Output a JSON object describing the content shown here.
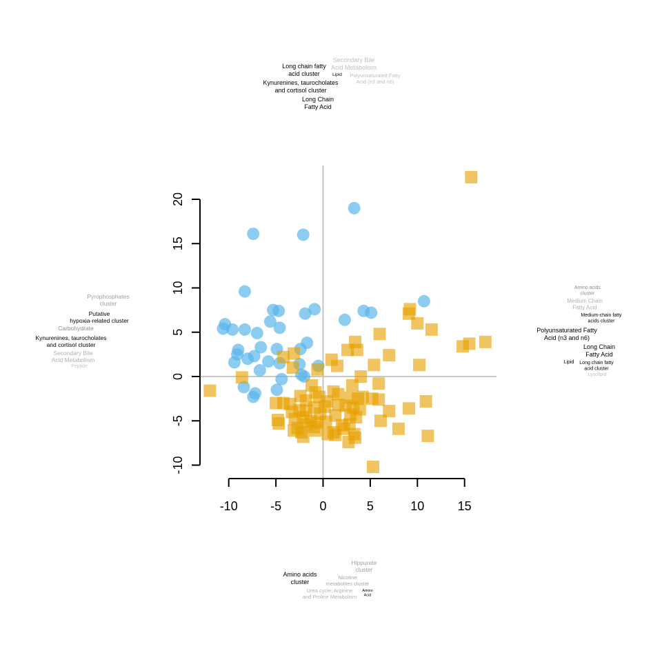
{
  "chart_data": {
    "type": "scatter",
    "title": "",
    "xlabel": "",
    "ylabel": "",
    "xlim": [
      -12.5,
      18.5
    ],
    "ylim": [
      -11,
      24
    ],
    "x_ticks": [
      -10,
      -5,
      0,
      5,
      10,
      15
    ],
    "y_ticks": [
      -10,
      -5,
      0,
      5,
      10,
      15,
      20
    ],
    "x_tick_labels": [
      "-10",
      "-5",
      "0",
      "5",
      "10",
      "15"
    ],
    "y_tick_labels": [
      "-10",
      "-5",
      "0",
      "5",
      "10",
      "15",
      "20"
    ],
    "reference_lines": {
      "x": 0,
      "y": 0,
      "color": "#bfbfbf"
    },
    "grid": false,
    "series": [
      {
        "marker": "circle",
        "color": "#56B4E9",
        "points": [
          [
            3.3,
            19.0
          ],
          [
            -7.4,
            16.1
          ],
          [
            -2.1,
            16.0
          ],
          [
            -8.3,
            9.6
          ],
          [
            10.7,
            8.5
          ],
          [
            -0.9,
            7.6
          ],
          [
            -5.3,
            7.5
          ],
          [
            -4.7,
            7.4
          ],
          [
            4.3,
            7.4
          ],
          [
            -1.9,
            7.1
          ],
          [
            5.1,
            7.2
          ],
          [
            2.3,
            6.4
          ],
          [
            -10.4,
            5.9
          ],
          [
            -5.6,
            6.2
          ],
          [
            -10.6,
            5.4
          ],
          [
            -9.6,
            5.3
          ],
          [
            -8.3,
            5.3
          ],
          [
            -4.6,
            5.5
          ],
          [
            -7.0,
            4.9
          ],
          [
            -1.7,
            3.8
          ],
          [
            -6.6,
            3.3
          ],
          [
            -9.0,
            3.0
          ],
          [
            -4.9,
            3.1
          ],
          [
            -2.4,
            3.1
          ],
          [
            -9.1,
            2.5
          ],
          [
            -7.3,
            2.3
          ],
          [
            -8.0,
            2.0
          ],
          [
            -5.8,
            1.7
          ],
          [
            -9.4,
            1.6
          ],
          [
            -2.5,
            1.4
          ],
          [
            -0.5,
            1.2
          ],
          [
            -4.6,
            1.5
          ],
          [
            -6.7,
            0.7
          ],
          [
            -2.3,
            0.2
          ],
          [
            -2.0,
            0.0
          ],
          [
            -4.4,
            -0.3
          ],
          [
            -8.4,
            -1.2
          ],
          [
            -4.9,
            -1.5
          ],
          [
            -7.2,
            -1.9
          ],
          [
            -7.4,
            -2.3
          ]
        ]
      },
      {
        "marker": "square",
        "color": "#E69F00",
        "points": [
          [
            15.7,
            22.5
          ],
          [
            9.2,
            7.6
          ],
          [
            9.1,
            7.1
          ],
          [
            10.0,
            6.0
          ],
          [
            11.5,
            5.3
          ],
          [
            6.0,
            4.8
          ],
          [
            3.4,
            3.9
          ],
          [
            17.2,
            3.9
          ],
          [
            15.5,
            3.7
          ],
          [
            14.8,
            3.4
          ],
          [
            2.6,
            3.0
          ],
          [
            3.6,
            3.0
          ],
          [
            7.0,
            2.4
          ],
          [
            -4.2,
            2.2
          ],
          [
            -3.1,
            2.6
          ],
          [
            0.9,
            1.9
          ],
          [
            5.4,
            1.3
          ],
          [
            10.2,
            1.3
          ],
          [
            1.5,
            1.2
          ],
          [
            -3.2,
            1.0
          ],
          [
            -0.6,
            0.8
          ],
          [
            4.0,
            0.0
          ],
          [
            -8.6,
            -0.1
          ],
          [
            5.9,
            -0.8
          ],
          [
            3.1,
            -1.0
          ],
          [
            -1.2,
            -1.0
          ],
          [
            -12.0,
            -1.6
          ],
          [
            1.1,
            -1.7
          ],
          [
            -0.8,
            -1.8
          ],
          [
            1.6,
            -2.0
          ],
          [
            -2.4,
            -2.2
          ],
          [
            -0.4,
            -2.3
          ],
          [
            2.9,
            -2.4
          ],
          [
            3.7,
            -2.5
          ],
          [
            4.2,
            -2.3
          ],
          [
            5.2,
            -2.5
          ],
          [
            5.9,
            -2.6
          ],
          [
            -1.8,
            -2.7
          ],
          [
            0.4,
            -2.8
          ],
          [
            10.9,
            -2.8
          ],
          [
            -3.5,
            -3.1
          ],
          [
            -4.2,
            -3.0
          ],
          [
            -5.0,
            -3.0
          ],
          [
            2.4,
            -3.3
          ],
          [
            1.6,
            -3.2
          ],
          [
            -0.9,
            -3.5
          ],
          [
            0.2,
            -3.4
          ],
          [
            3.2,
            -3.5
          ],
          [
            9.1,
            -3.6
          ],
          [
            -1.8,
            -3.9
          ],
          [
            -2.5,
            -3.8
          ],
          [
            3.9,
            -3.7
          ],
          [
            -3.3,
            -4.0
          ],
          [
            7.0,
            -3.9
          ],
          [
            -0.3,
            -4.2
          ],
          [
            1.3,
            -4.4
          ],
          [
            2.9,
            -4.3
          ],
          [
            3.5,
            -4.6
          ],
          [
            -2.1,
            -4.6
          ],
          [
            -3.0,
            -4.8
          ],
          [
            -4.8,
            -4.9
          ],
          [
            -1.3,
            -5.0
          ],
          [
            0.3,
            -5.1
          ],
          [
            6.1,
            -5.0
          ],
          [
            -4.7,
            -5.3
          ],
          [
            -0.6,
            -5.2
          ],
          [
            -1.8,
            -5.4
          ],
          [
            2.0,
            -5.5
          ],
          [
            2.8,
            -5.4
          ],
          [
            -2.7,
            -5.8
          ],
          [
            -1.0,
            -5.7
          ],
          [
            2.2,
            -5.9
          ],
          [
            8.0,
            -5.9
          ],
          [
            -3.1,
            -6.1
          ],
          [
            -0.8,
            -6.1
          ],
          [
            1.1,
            -6.3
          ],
          [
            -2.3,
            -6.3
          ],
          [
            0.5,
            -6.5
          ],
          [
            3.3,
            -6.5
          ],
          [
            -2.1,
            -6.8
          ],
          [
            1.3,
            -6.6
          ],
          [
            11.1,
            -6.7
          ],
          [
            3.4,
            -6.9
          ],
          [
            2.7,
            -7.4
          ],
          [
            5.3,
            -10.2
          ]
        ]
      }
    ],
    "annotations": {
      "top": [
        {
          "lines": [
            "Secondary Bile",
            "Acid Metabolism"
          ],
          "color": "#c0c0c0",
          "size": 9
        },
        {
          "lines": [
            "Long chain fatty",
            "acid cluster"
          ],
          "color": "#000000",
          "size": 9
        },
        {
          "lines": [
            "Lipid"
          ],
          "color": "#000000",
          "size": 6.5
        },
        {
          "lines": [
            "Polyunsaturated Fatty",
            "Acid (n3 and n6)"
          ],
          "color": "#c0c0c0",
          "size": 7.5
        },
        {
          "lines": [
            "Kynurenines, taurocholates",
            "and cortisol cluster"
          ],
          "color": "#000000",
          "size": 9
        },
        {
          "lines": [
            "Long Chain",
            "Fatty Acid"
          ],
          "color": "#000000",
          "size": 9
        }
      ],
      "left": [
        {
          "lines": [
            "Pyrophosphates",
            "cluster"
          ],
          "color": "#a0a0a0",
          "size": 8.5
        },
        {
          "lines": [
            "Putative",
            "hypoxia-related cluster"
          ],
          "color": "#000000",
          "size": 8.5
        },
        {
          "lines": [
            "Carbohydrate"
          ],
          "color": "#8a8a8a",
          "size": 8.5
        },
        {
          "lines": [
            "Kynurenines, taurocholates",
            "and cortisol cluster"
          ],
          "color": "#000000",
          "size": 8.5
        },
        {
          "lines": [
            "Secondary Bile",
            "Acid Metabolism"
          ],
          "color": "#b0b0b0",
          "size": 8.5
        },
        {
          "lines": [
            "Peptide"
          ],
          "color": "#c8c8c8",
          "size": 7
        }
      ],
      "right": [
        {
          "lines": [
            "Amino acids",
            "cluster"
          ],
          "color": "#8a8a8a",
          "size": 7
        },
        {
          "lines": [
            "Medium Chain",
            "Fatty Acid"
          ],
          "color": "#b0b0b0",
          "size": 8
        },
        {
          "lines": [
            "Medium-chain fatty",
            "acids cluster"
          ],
          "color": "#000000",
          "size": 7
        },
        {
          "lines": [
            "Polyunsaturated Fatty",
            "Acid (n3 and n6)"
          ],
          "color": "#000000",
          "size": 9
        },
        {
          "lines": [
            "Long Chain",
            "Fatty Acid"
          ],
          "color": "#000000",
          "size": 9
        },
        {
          "lines": [
            "Lipid"
          ],
          "color": "#000000",
          "size": 7
        },
        {
          "lines": [
            "Long chain fatty",
            "acid cluster"
          ],
          "color": "#000000",
          "size": 7
        },
        {
          "lines": [
            "Lysolipid"
          ],
          "color": "#c0c0c0",
          "size": 7
        }
      ],
      "bottom": [
        {
          "lines": [
            "Hippurate",
            "cluster"
          ],
          "color": "#a0a0a0",
          "size": 8.5
        },
        {
          "lines": [
            "Amino acids",
            "cluster"
          ],
          "color": "#000000",
          "size": 9
        },
        {
          "lines": [
            "Nicotine",
            "metabolites cluster"
          ],
          "color": "#a8a8a8",
          "size": 7.5
        },
        {
          "lines": [
            "Urea cycle; Arginine",
            "and Proline Metabolism"
          ],
          "color": "#b0b0b0",
          "size": 7.5
        },
        {
          "lines": [
            "Amino",
            "Acid"
          ],
          "color": "#000000",
          "size": 5.5
        }
      ]
    }
  }
}
